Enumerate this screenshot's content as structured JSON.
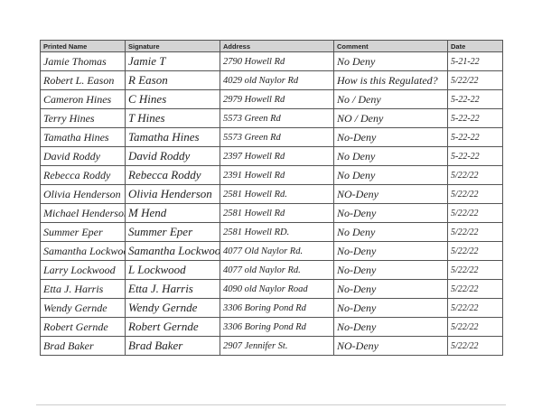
{
  "headers": {
    "name": "Printed Name",
    "signature": "Signature",
    "address": "Address",
    "comment": "Comment",
    "date": "Date"
  },
  "rows": [
    {
      "name": "Jamie Thomas",
      "signature": "Jamie T",
      "address": "2790 Howell Rd",
      "comment": "No Deny",
      "date": "5-21-22"
    },
    {
      "name": "Robert L. Eason",
      "signature": "R Eason",
      "address": "4029 old Naylor Rd",
      "comment": "How is this Regulated?",
      "date": "5/22/22"
    },
    {
      "name": "Cameron Hines",
      "signature": "C Hines",
      "address": "2979 Howell Rd",
      "comment": "No / Deny",
      "date": "5-22-22"
    },
    {
      "name": "Terry Hines",
      "signature": "T Hines",
      "address": "5573 Green Rd",
      "comment": "NO / Deny",
      "date": "5-22-22"
    },
    {
      "name": "Tamatha Hines",
      "signature": "Tamatha Hines",
      "address": "5573 Green Rd",
      "comment": "No-Deny",
      "date": "5-22-22"
    },
    {
      "name": "David Roddy",
      "signature": "David Roddy",
      "address": "2397 Howell Rd",
      "comment": "No Deny",
      "date": "5-22-22"
    },
    {
      "name": "Rebecca Roddy",
      "signature": "Rebecca Roddy",
      "address": "2391 Howell Rd",
      "comment": "No Deny",
      "date": "5/22/22"
    },
    {
      "name": "Olivia Henderson",
      "signature": "Olivia Henderson",
      "address": "2581 Howell Rd.",
      "comment": "NO-Deny",
      "date": "5/22/22"
    },
    {
      "name": "Michael Henderson",
      "signature": "M Hend",
      "address": "2581 Howell Rd",
      "comment": "No-Deny",
      "date": "5/22/22"
    },
    {
      "name": "Summer Eper",
      "signature": "Summer Eper",
      "address": "2581 Howell RD.",
      "comment": "No Deny",
      "date": "5/22/22"
    },
    {
      "name": "Samantha Lockwood",
      "signature": "Samantha Lockwood",
      "address": "4077 Old Naylor Rd.",
      "comment": "No-Deny",
      "date": "5/22/22"
    },
    {
      "name": "Larry Lockwood",
      "signature": "L Lockwood",
      "address": "4077 old Naylor Rd.",
      "comment": "No-Deny",
      "date": "5/22/22"
    },
    {
      "name": "Etta J. Harris",
      "signature": "Etta J. Harris",
      "address": "4090 old Naylor Road",
      "comment": "No-Deny",
      "date": "5/22/22"
    },
    {
      "name": "Wendy Gernde",
      "signature": "Wendy Gernde",
      "address": "3306 Boring Pond Rd",
      "comment": "No-Deny",
      "date": "5/22/22"
    },
    {
      "name": "Robert Gernde",
      "signature": "Robert Gernde",
      "address": "3306 Boring Pond Rd",
      "comment": "No-Deny",
      "date": "5/22/22"
    },
    {
      "name": "Brad Baker",
      "signature": "Brad Baker",
      "address": "2907 Jennifer St.",
      "comment": "NO-Deny",
      "date": "5/22/22"
    }
  ]
}
